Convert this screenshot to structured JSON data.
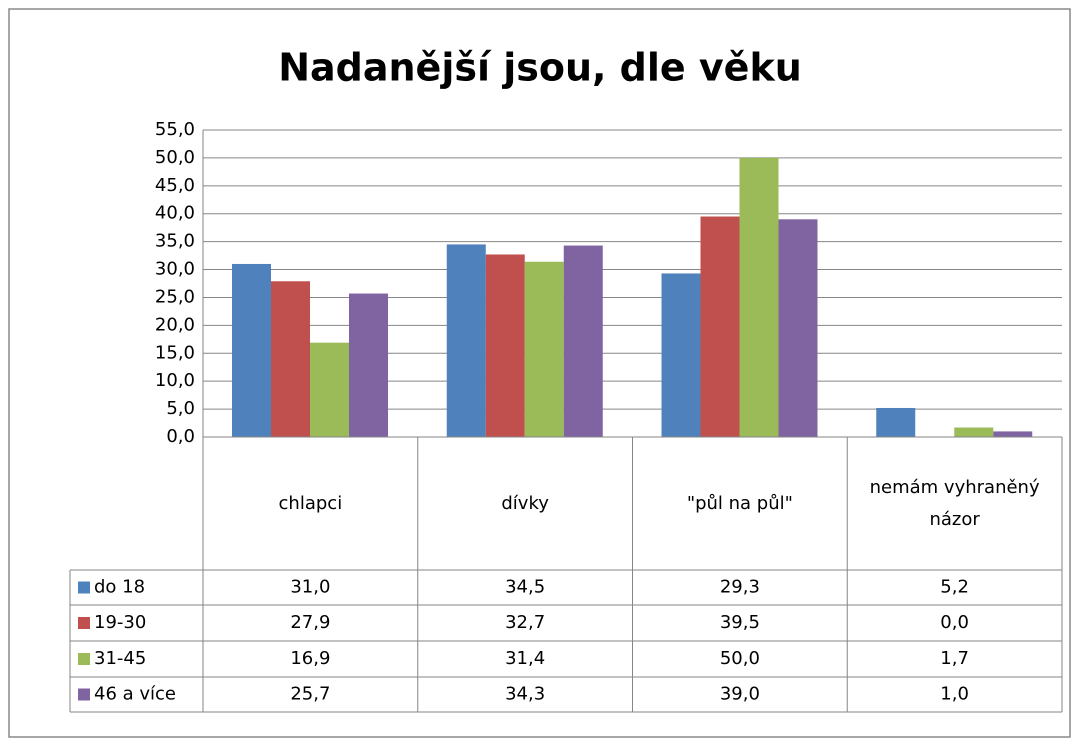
{
  "chart_data": {
    "type": "bar",
    "title": "Nadanější jsou, dle věku",
    "categories": [
      "chlapci",
      "dívky",
      "\"půl na půl\"",
      "nemám vyhraněný názor"
    ],
    "series": [
      {
        "name": "do 18",
        "color": "#4f81bd",
        "values": [
          31.0,
          34.5,
          29.3,
          5.2
        ],
        "value_labels": [
          "31,0",
          "34,5",
          "29,3",
          "5,2"
        ]
      },
      {
        "name": "19-30",
        "color": "#c0504d",
        "values": [
          27.9,
          32.7,
          39.5,
          0.0
        ],
        "value_labels": [
          "27,9",
          "32,7",
          "39,5",
          "0,0"
        ]
      },
      {
        "name": "31-45",
        "color": "#9bbb59",
        "values": [
          16.9,
          31.4,
          50.0,
          1.7
        ],
        "value_labels": [
          "16,9",
          "31,4",
          "50,0",
          "1,7"
        ]
      },
      {
        "name": "46 a více",
        "color": "#8064a2",
        "values": [
          25.7,
          34.3,
          39.0,
          1.0
        ],
        "value_labels": [
          "25,7",
          "34,3",
          "39,0",
          "1,0"
        ]
      }
    ],
    "ylim": [
      0,
      55
    ],
    "yticks": [
      {
        "value": 0,
        "label": "0,0"
      },
      {
        "value": 5,
        "label": "5,0"
      },
      {
        "value": 10,
        "label": "10,0"
      },
      {
        "value": 15,
        "label": "15,0"
      },
      {
        "value": 20,
        "label": "20,0"
      },
      {
        "value": 25,
        "label": "25,0"
      },
      {
        "value": 30,
        "label": "30,0"
      },
      {
        "value": 35,
        "label": "35,0"
      },
      {
        "value": 40,
        "label": "40,0"
      },
      {
        "value": 45,
        "label": "45,0"
      },
      {
        "value": 50,
        "label": "50,0"
      },
      {
        "value": 55,
        "label": "55,0"
      }
    ],
    "grid": true,
    "data_table": true
  }
}
